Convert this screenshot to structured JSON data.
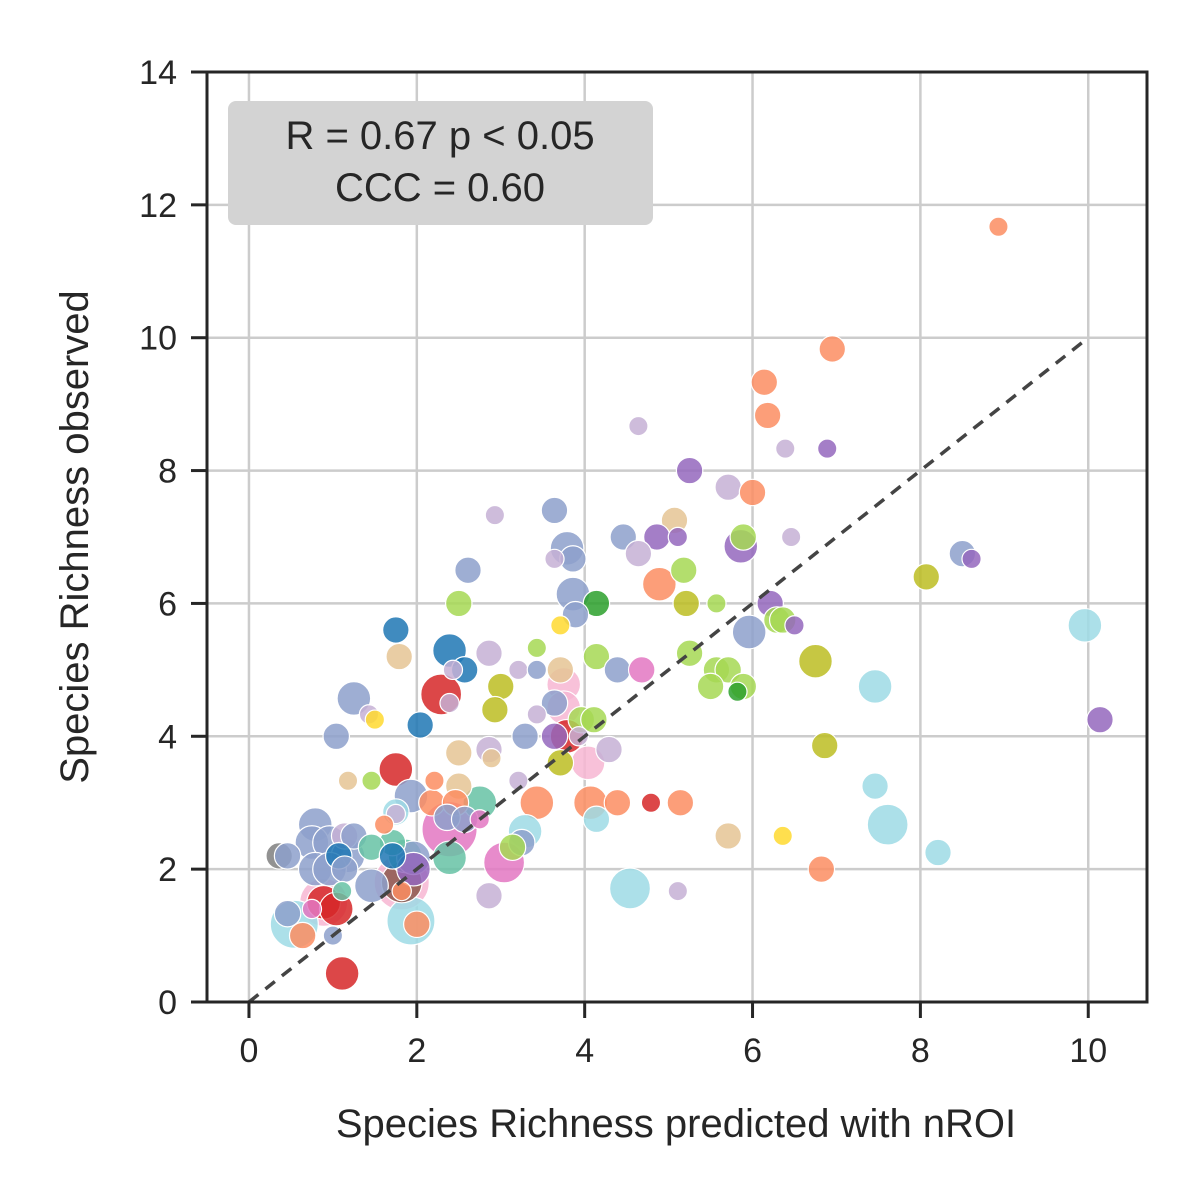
{
  "chart_data": {
    "type": "scatter",
    "title": "",
    "xlabel": "Species Richness predicted with nROI",
    "ylabel": "Species Richness observed",
    "xlim": [
      -0.5,
      10.7
    ],
    "ylim": [
      0,
      14
    ],
    "x_ticks": [
      0,
      2,
      4,
      6,
      8,
      10
    ],
    "y_ticks": [
      0,
      2,
      4,
      6,
      8,
      10,
      12,
      14
    ],
    "x_tick_labels": [
      "0",
      "2",
      "4",
      "6",
      "8",
      "10"
    ],
    "y_tick_labels": [
      "0",
      "2",
      "4",
      "6",
      "8",
      "10",
      "12",
      "14"
    ],
    "grid": true,
    "identity_line": {
      "from": [
        0,
        0
      ],
      "to": [
        10,
        10
      ],
      "style": "dashed",
      "color": "#444444"
    },
    "annotation": {
      "line1": "R = 0.67 p < 0.05",
      "line2": "CCC = 0.60",
      "placement": "top-left",
      "background": "#d3d3d3"
    },
    "points": [
      {
        "x": 8.93,
        "y": 11.67,
        "s": 1,
        "color": "#fc8d62"
      },
      {
        "x": 6.95,
        "y": 9.83,
        "s": 2,
        "color": "#fc8d62"
      },
      {
        "x": 6.14,
        "y": 9.33,
        "s": 2,
        "color": "#fc8d62"
      },
      {
        "x": 6.18,
        "y": 8.83,
        "s": 2,
        "color": "#fc8d62"
      },
      {
        "x": 4.64,
        "y": 8.67,
        "s": 1,
        "color": "#c5b0d5"
      },
      {
        "x": 6.39,
        "y": 8.33,
        "s": 1,
        "color": "#c5b0d5"
      },
      {
        "x": 6.89,
        "y": 8.33,
        "s": 1,
        "color": "#9467bd"
      },
      {
        "x": 5.25,
        "y": 8.0,
        "s": 2,
        "color": "#9467bd"
      },
      {
        "x": 5.71,
        "y": 7.75,
        "s": 2,
        "color": "#c5b0d5"
      },
      {
        "x": 6.0,
        "y": 7.67,
        "s": 2,
        "color": "#fc8d62"
      },
      {
        "x": 3.64,
        "y": 7.4,
        "s": 2,
        "color": "#8da0cb"
      },
      {
        "x": 2.93,
        "y": 7.33,
        "s": 1,
        "color": "#c5b0d5"
      },
      {
        "x": 5.07,
        "y": 7.25,
        "s": 2,
        "color": "#e5c494"
      },
      {
        "x": 4.46,
        "y": 7.0,
        "s": 2,
        "color": "#8da0cb"
      },
      {
        "x": 4.86,
        "y": 7.0,
        "s": 2,
        "color": "#9467bd"
      },
      {
        "x": 5.11,
        "y": 7.0,
        "s": 1,
        "color": "#9467bd"
      },
      {
        "x": 5.89,
        "y": 7.0,
        "s": 2,
        "color": "#a6d854"
      },
      {
        "x": 6.46,
        "y": 7.0,
        "s": 1,
        "color": "#c5b0d5"
      },
      {
        "x": 3.79,
        "y": 6.83,
        "s": 3,
        "color": "#8da0cb"
      },
      {
        "x": 5.86,
        "y": 6.86,
        "s": 3,
        "color": "#9467bd"
      },
      {
        "x": 4.64,
        "y": 6.75,
        "s": 2,
        "color": "#c5b0d5"
      },
      {
        "x": 3.86,
        "y": 6.67,
        "s": 2,
        "color": "#8da0cb"
      },
      {
        "x": 3.64,
        "y": 6.67,
        "s": 1,
        "color": "#c5b0d5"
      },
      {
        "x": 8.5,
        "y": 6.75,
        "s": 2,
        "color": "#8da0cb"
      },
      {
        "x": 8.61,
        "y": 6.67,
        "s": 1,
        "color": "#9467bd"
      },
      {
        "x": 2.61,
        "y": 6.5,
        "s": 2,
        "color": "#8da0cb"
      },
      {
        "x": 5.18,
        "y": 6.5,
        "s": 2,
        "color": "#a6d854"
      },
      {
        "x": 8.07,
        "y": 6.4,
        "s": 2,
        "color": "#bcbd22"
      },
      {
        "x": 4.89,
        "y": 6.29,
        "s": 3,
        "color": "#fc8d62"
      },
      {
        "x": 3.86,
        "y": 6.14,
        "s": 3,
        "color": "#8da0cb"
      },
      {
        "x": 2.5,
        "y": 6.0,
        "s": 2,
        "color": "#a6d854"
      },
      {
        "x": 4.14,
        "y": 6.0,
        "s": 2,
        "color": "#2ca02c"
      },
      {
        "x": 5.21,
        "y": 6.0,
        "s": 2,
        "color": "#bcbd22"
      },
      {
        "x": 5.57,
        "y": 6.0,
        "s": 1,
        "color": "#a6d854"
      },
      {
        "x": 6.21,
        "y": 6.0,
        "s": 2,
        "color": "#9467bd"
      },
      {
        "x": 3.89,
        "y": 5.83,
        "s": 2,
        "color": "#8da0cb"
      },
      {
        "x": 6.29,
        "y": 5.75,
        "s": 2,
        "color": "#a6d854"
      },
      {
        "x": 6.36,
        "y": 5.75,
        "s": 2,
        "color": "#a6d854"
      },
      {
        "x": 6.5,
        "y": 5.67,
        "s": 1,
        "color": "#9467bd"
      },
      {
        "x": 3.71,
        "y": 5.67,
        "s": 1,
        "color": "#ffd92f"
      },
      {
        "x": 9.96,
        "y": 5.67,
        "s": 3,
        "color": "#9edae5"
      },
      {
        "x": 1.75,
        "y": 5.6,
        "s": 2,
        "color": "#1f77b4"
      },
      {
        "x": 5.96,
        "y": 5.57,
        "s": 3,
        "color": "#8da0cb"
      },
      {
        "x": 3.43,
        "y": 5.33,
        "s": 1,
        "color": "#a6d854"
      },
      {
        "x": 2.39,
        "y": 5.29,
        "s": 3,
        "color": "#1f77b4"
      },
      {
        "x": 2.86,
        "y": 5.25,
        "s": 2,
        "color": "#c5b0d5"
      },
      {
        "x": 5.25,
        "y": 5.25,
        "s": 2,
        "color": "#a6d854"
      },
      {
        "x": 1.79,
        "y": 5.2,
        "s": 2,
        "color": "#e5c494"
      },
      {
        "x": 4.14,
        "y": 5.2,
        "s": 2,
        "color": "#a6d854"
      },
      {
        "x": 6.75,
        "y": 5.13,
        "s": 3,
        "color": "#bcbd22"
      },
      {
        "x": 2.57,
        "y": 5.0,
        "s": 2,
        "color": "#1f77b4"
      },
      {
        "x": 2.43,
        "y": 5.0,
        "s": 1,
        "color": "#c5b0d5"
      },
      {
        "x": 3.21,
        "y": 5.0,
        "s": 1,
        "color": "#c5b0d5"
      },
      {
        "x": 3.43,
        "y": 5.0,
        "s": 1,
        "color": "#8da0cb"
      },
      {
        "x": 3.71,
        "y": 5.0,
        "s": 2,
        "color": "#e5c494"
      },
      {
        "x": 4.39,
        "y": 5.0,
        "s": 2,
        "color": "#8da0cb"
      },
      {
        "x": 4.68,
        "y": 5.0,
        "s": 2,
        "color": "#e377c2"
      },
      {
        "x": 5.57,
        "y": 5.0,
        "s": 2,
        "color": "#a6d854"
      },
      {
        "x": 5.71,
        "y": 5.0,
        "s": 2,
        "color": "#a6d854"
      },
      {
        "x": 3.75,
        "y": 4.78,
        "s": 3,
        "color": "#f7b6d2"
      },
      {
        "x": 3.0,
        "y": 4.75,
        "s": 2,
        "color": "#bcbd22"
      },
      {
        "x": 5.5,
        "y": 4.75,
        "s": 2,
        "color": "#a6d854"
      },
      {
        "x": 5.89,
        "y": 4.75,
        "s": 2,
        "color": "#a6d854"
      },
      {
        "x": 5.82,
        "y": 4.67,
        "s": 1,
        "color": "#2ca02c"
      },
      {
        "x": 7.46,
        "y": 4.75,
        "s": 3,
        "color": "#9edae5"
      },
      {
        "x": 2.29,
        "y": 4.63,
        "s": 4,
        "color": "#d62728"
      },
      {
        "x": 1.25,
        "y": 4.57,
        "s": 3,
        "color": "#8da0cb"
      },
      {
        "x": 3.64,
        "y": 4.5,
        "s": 2,
        "color": "#8da0cb"
      },
      {
        "x": 2.39,
        "y": 4.5,
        "s": 1,
        "color": "#c5b0d5"
      },
      {
        "x": 3.75,
        "y": 4.43,
        "s": 3,
        "color": "#f7b6d2"
      },
      {
        "x": 2.93,
        "y": 4.4,
        "s": 2,
        "color": "#bcbd22"
      },
      {
        "x": 1.43,
        "y": 4.33,
        "s": 1,
        "color": "#c5b0d5"
      },
      {
        "x": 1.5,
        "y": 4.25,
        "s": 1,
        "color": "#ffd92f"
      },
      {
        "x": 3.43,
        "y": 4.33,
        "s": 1,
        "color": "#c5b0d5"
      },
      {
        "x": 3.96,
        "y": 4.25,
        "s": 2,
        "color": "#a6d854"
      },
      {
        "x": 4.11,
        "y": 4.25,
        "s": 2,
        "color": "#a6d854"
      },
      {
        "x": 10.14,
        "y": 4.25,
        "s": 2,
        "color": "#9467bd"
      },
      {
        "x": 2.04,
        "y": 4.17,
        "s": 2,
        "color": "#1f77b4"
      },
      {
        "x": 1.04,
        "y": 4.0,
        "s": 2,
        "color": "#8da0cb"
      },
      {
        "x": 3.29,
        "y": 4.0,
        "s": 2,
        "color": "#8da0cb"
      },
      {
        "x": 3.64,
        "y": 4.0,
        "s": 2,
        "color": "#9467bd"
      },
      {
        "x": 3.79,
        "y": 4.0,
        "s": 3,
        "color": "#d62728"
      },
      {
        "x": 3.93,
        "y": 4.0,
        "s": 1,
        "color": "#c5b0d5"
      },
      {
        "x": 6.86,
        "y": 3.86,
        "s": 2,
        "color": "#bcbd22"
      },
      {
        "x": 2.86,
        "y": 3.8,
        "s": 2,
        "color": "#c5b0d5"
      },
      {
        "x": 2.5,
        "y": 3.75,
        "s": 2,
        "color": "#e5c494"
      },
      {
        "x": 4.29,
        "y": 3.8,
        "s": 2,
        "color": "#c5b0d5"
      },
      {
        "x": 2.89,
        "y": 3.67,
        "s": 1,
        "color": "#e5c494"
      },
      {
        "x": 3.71,
        "y": 3.6,
        "s": 2,
        "color": "#bcbd22"
      },
      {
        "x": 4.04,
        "y": 3.6,
        "s": 3,
        "color": "#f7b6d2"
      },
      {
        "x": 1.75,
        "y": 3.5,
        "s": 3,
        "color": "#d62728"
      },
      {
        "x": 1.18,
        "y": 3.33,
        "s": 1,
        "color": "#e5c494"
      },
      {
        "x": 1.46,
        "y": 3.33,
        "s": 1,
        "color": "#a6d854"
      },
      {
        "x": 2.21,
        "y": 3.33,
        "s": 1,
        "color": "#fc8d62"
      },
      {
        "x": 2.5,
        "y": 3.25,
        "s": 2,
        "color": "#e5c494"
      },
      {
        "x": 3.21,
        "y": 3.33,
        "s": 1,
        "color": "#c5b0d5"
      },
      {
        "x": 7.46,
        "y": 3.25,
        "s": 2,
        "color": "#9edae5"
      },
      {
        "x": 1.93,
        "y": 3.1,
        "s": 3,
        "color": "#8da0cb"
      },
      {
        "x": 2.18,
        "y": 3.0,
        "s": 2,
        "color": "#fc8d62"
      },
      {
        "x": 2.46,
        "y": 3.0,
        "s": 2,
        "color": "#fc8d62"
      },
      {
        "x": 2.75,
        "y": 3.0,
        "s": 3,
        "color": "#66c2a5"
      },
      {
        "x": 3.43,
        "y": 3.0,
        "s": 3,
        "color": "#fc8d62"
      },
      {
        "x": 4.07,
        "y": 3.0,
        "s": 3,
        "color": "#fc8d62"
      },
      {
        "x": 4.39,
        "y": 3.0,
        "s": 2,
        "color": "#fc8d62"
      },
      {
        "x": 4.79,
        "y": 3.0,
        "s": 1,
        "color": "#d62728"
      },
      {
        "x": 5.14,
        "y": 3.0,
        "s": 2,
        "color": "#fc8d62"
      },
      {
        "x": 1.75,
        "y": 2.86,
        "s": 2,
        "color": "#9edae5"
      },
      {
        "x": 1.75,
        "y": 2.83,
        "s": 1,
        "color": "#c5b0d5"
      },
      {
        "x": 2.36,
        "y": 2.78,
        "s": 2,
        "color": "#8da0cb"
      },
      {
        "x": 2.57,
        "y": 2.75,
        "s": 2,
        "color": "#8da0cb"
      },
      {
        "x": 2.75,
        "y": 2.75,
        "s": 1,
        "color": "#e377c2"
      },
      {
        "x": 4.14,
        "y": 2.75,
        "s": 2,
        "color": "#9edae5"
      },
      {
        "x": 7.61,
        "y": 2.67,
        "s": 4,
        "color": "#9edae5"
      },
      {
        "x": 0.79,
        "y": 2.67,
        "s": 3,
        "color": "#8da0cb"
      },
      {
        "x": 1.61,
        "y": 2.67,
        "s": 1,
        "color": "#fc8d62"
      },
      {
        "x": 2.39,
        "y": 2.6,
        "s": 6,
        "color": "#e377c2"
      },
      {
        "x": 3.29,
        "y": 2.57,
        "s": 3,
        "color": "#9edae5"
      },
      {
        "x": 5.71,
        "y": 2.5,
        "s": 2,
        "color": "#e5c494"
      },
      {
        "x": 6.36,
        "y": 2.5,
        "s": 1,
        "color": "#ffd92f"
      },
      {
        "x": 1.14,
        "y": 2.5,
        "s": 2,
        "color": "#c5b0d5"
      },
      {
        "x": 1.25,
        "y": 2.5,
        "s": 2,
        "color": "#8da0cb"
      },
      {
        "x": 0.75,
        "y": 2.4,
        "s": 3,
        "color": "#8da0cb"
      },
      {
        "x": 0.96,
        "y": 2.4,
        "s": 3,
        "color": "#8da0cb"
      },
      {
        "x": 1.71,
        "y": 2.4,
        "s": 2,
        "color": "#66c2a5"
      },
      {
        "x": 3.25,
        "y": 2.4,
        "s": 2,
        "color": "#8da0cb"
      },
      {
        "x": 1.46,
        "y": 2.33,
        "s": 2,
        "color": "#66c2a5"
      },
      {
        "x": 3.14,
        "y": 2.33,
        "s": 2,
        "color": "#a6d854"
      },
      {
        "x": 8.21,
        "y": 2.25,
        "s": 2,
        "color": "#9edae5"
      },
      {
        "x": 0.36,
        "y": 2.2,
        "s": 2,
        "color": "#7f7f7f"
      },
      {
        "x": 0.46,
        "y": 2.2,
        "s": 2,
        "color": "#8da0cb"
      },
      {
        "x": 1.18,
        "y": 2.2,
        "s": 3,
        "color": "#8da0cb"
      },
      {
        "x": 1.71,
        "y": 2.2,
        "s": 2,
        "color": "#1f77b4"
      },
      {
        "x": 1.86,
        "y": 2.2,
        "s": 3,
        "color": "#66c2a5"
      },
      {
        "x": 1.96,
        "y": 2.17,
        "s": 3,
        "color": "#8da0cb"
      },
      {
        "x": 2.39,
        "y": 2.17,
        "s": 3,
        "color": "#66c2a5"
      },
      {
        "x": 1.07,
        "y": 2.2,
        "s": 2,
        "color": "#1f77b4"
      },
      {
        "x": 3.04,
        "y": 2.1,
        "s": 4,
        "color": "#e377c2"
      },
      {
        "x": 0.79,
        "y": 2.0,
        "s": 3,
        "color": "#8da0cb"
      },
      {
        "x": 0.96,
        "y": 2.0,
        "s": 3,
        "color": "#8da0cb"
      },
      {
        "x": 1.14,
        "y": 2.0,
        "s": 2,
        "color": "#8da0cb"
      },
      {
        "x": 1.96,
        "y": 2.0,
        "s": 3,
        "color": "#9467bd"
      },
      {
        "x": 6.82,
        "y": 2.0,
        "s": 2,
        "color": "#fc8d62"
      },
      {
        "x": 1.82,
        "y": 1.8,
        "s": 6,
        "color": "#f7b6d2"
      },
      {
        "x": 1.82,
        "y": 1.8,
        "s": 4,
        "color": "#8c564b"
      },
      {
        "x": 1.46,
        "y": 1.75,
        "s": 3,
        "color": "#8da0cb"
      },
      {
        "x": 1.11,
        "y": 1.67,
        "s": 1,
        "color": "#66c2a5"
      },
      {
        "x": 1.82,
        "y": 1.67,
        "s": 1,
        "color": "#fc8d62"
      },
      {
        "x": 5.11,
        "y": 1.67,
        "s": 1,
        "color": "#c5b0d5"
      },
      {
        "x": 4.54,
        "y": 1.71,
        "s": 4,
        "color": "#9edae5"
      },
      {
        "x": 2.86,
        "y": 1.6,
        "s": 2,
        "color": "#c5b0d5"
      },
      {
        "x": 0.89,
        "y": 1.5,
        "s": 5,
        "color": "#f7b6d2"
      },
      {
        "x": 0.89,
        "y": 1.5,
        "s": 3,
        "color": "#d62728"
      },
      {
        "x": 1.04,
        "y": 1.4,
        "s": 3,
        "color": "#d62728"
      },
      {
        "x": 0.75,
        "y": 1.4,
        "s": 1,
        "color": "#e377c2"
      },
      {
        "x": 1.93,
        "y": 1.22,
        "s": 5,
        "color": "#9edae5"
      },
      {
        "x": 2.0,
        "y": 1.17,
        "s": 2,
        "color": "#fc8d62"
      },
      {
        "x": 0.54,
        "y": 1.17,
        "s": 5,
        "color": "#9edae5"
      },
      {
        "x": 0.46,
        "y": 1.33,
        "s": 2,
        "color": "#8da0cb"
      },
      {
        "x": 0.64,
        "y": 1.0,
        "s": 2,
        "color": "#fc8d62"
      },
      {
        "x": 1.0,
        "y": 1.0,
        "s": 1,
        "color": "#8da0cb"
      },
      {
        "x": 1.11,
        "y": 0.43,
        "s": 3,
        "color": "#d62728"
      }
    ]
  }
}
